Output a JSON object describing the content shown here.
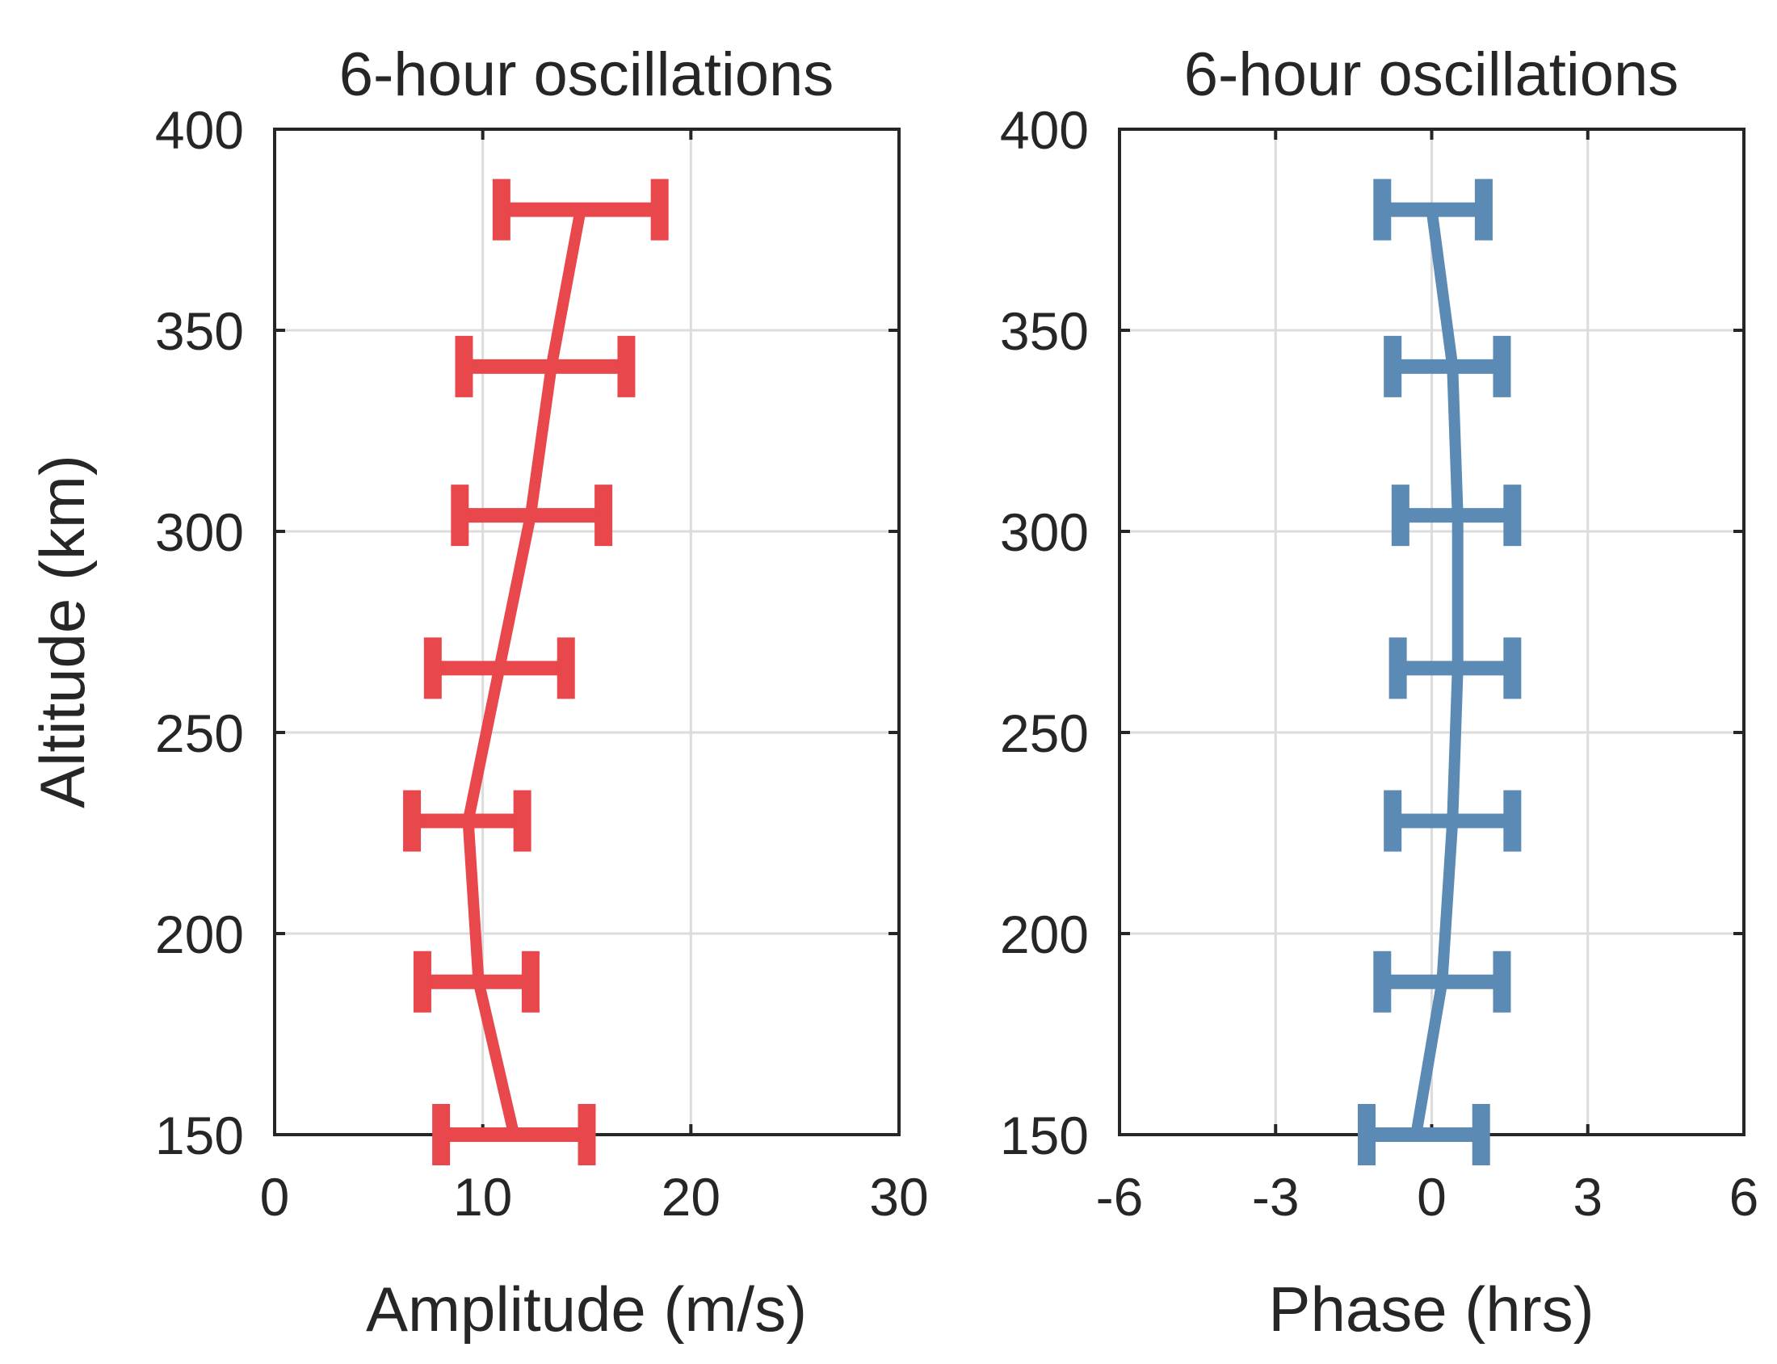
{
  "chart_data": [
    {
      "type": "line",
      "title": "6-hour oscillations",
      "xlabel": "Amplitude (m/s)",
      "ylabel": "Altitude (km)",
      "xlim": [
        0,
        30
      ],
      "ylim": [
        150,
        400
      ],
      "xticks": [
        0,
        10,
        20,
        30
      ],
      "xtick_labels": [
        "0",
        "10",
        "20",
        "30"
      ],
      "yticks": [
        150,
        200,
        250,
        300,
        350,
        400
      ],
      "ytick_labels": [
        "150",
        "200",
        "250",
        "300",
        "350",
        "400"
      ],
      "grid": true,
      "color": "#e8474c",
      "series": [
        {
          "name": "amplitude",
          "altitude": [
            150,
            188,
            228,
            266,
            304,
            341,
            380
          ],
          "value": [
            11.5,
            9.8,
            9.3,
            10.8,
            12.3,
            13.3,
            14.7
          ],
          "err_low": [
            8.0,
            7.1,
            6.6,
            7.6,
            8.9,
            9.1,
            10.9
          ],
          "err_high": [
            15.0,
            12.3,
            11.9,
            14.0,
            15.8,
            16.9,
            18.5
          ]
        }
      ]
    },
    {
      "type": "line",
      "title": "6-hour oscillations",
      "xlabel": "Phase (hrs)",
      "ylabel": "",
      "xlim": [
        -6,
        6
      ],
      "ylim": [
        150,
        400
      ],
      "xticks": [
        -6,
        -3,
        0,
        3,
        6
      ],
      "xtick_labels": [
        "-6",
        "-3",
        "0",
        "3",
        "6"
      ],
      "yticks": [
        150,
        200,
        250,
        300,
        350,
        400
      ],
      "ytick_labels": [
        "150",
        "200",
        "250",
        "300",
        "350",
        "400"
      ],
      "grid": true,
      "color": "#5b8ab4",
      "series": [
        {
          "name": "phase",
          "altitude": [
            150,
            188,
            228,
            266,
            304,
            341,
            380
          ],
          "value": [
            -0.3,
            0.2,
            0.4,
            0.5,
            0.5,
            0.4,
            0.0
          ],
          "err_low": [
            -1.25,
            -0.95,
            -0.75,
            -0.65,
            -0.6,
            -0.75,
            -0.95
          ],
          "err_high": [
            0.95,
            1.35,
            1.55,
            1.55,
            1.55,
            1.35,
            1.0
          ]
        }
      ]
    }
  ]
}
